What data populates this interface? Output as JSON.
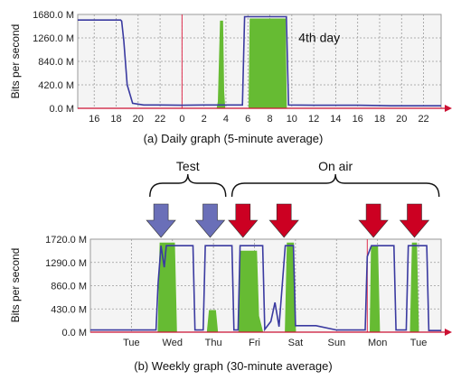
{
  "chart_data": [
    {
      "type": "line",
      "caption": "(a) Daily graph (5-minute average)",
      "ylabel": "Bits per second",
      "ylim": [
        0,
        1680
      ],
      "yticks": [
        "0.0 M",
        "420.0 M",
        "840.0 M",
        "1260.0 M",
        "1680.0 M"
      ],
      "ytick_values": [
        0,
        420,
        840,
        1260,
        1680
      ],
      "xticks": [
        "16",
        "18",
        "20",
        "22",
        "0",
        "2",
        "4",
        "6",
        "8",
        "10",
        "12",
        "14",
        "16",
        "18",
        "20",
        "22"
      ],
      "xtick_hours": [
        16,
        18,
        20,
        22,
        24,
        26,
        28,
        30,
        32,
        34,
        36,
        38,
        40,
        42,
        44,
        46
      ],
      "xlim_hours": [
        14.5,
        47.6
      ],
      "grid": true,
      "annotation": {
        "text": "4th day",
        "x_hour": 36.5,
        "y": 1190
      },
      "marker_hour": 24,
      "series": [
        {
          "color": "#3a3aa0",
          "points": [
            [
              14.5,
              1580
            ],
            [
              18.4,
              1580
            ],
            [
              18.5,
              1560
            ],
            [
              18.7,
              1200
            ],
            [
              19.0,
              420
            ],
            [
              19.5,
              90
            ],
            [
              20.5,
              60
            ],
            [
              22,
              60
            ],
            [
              24,
              55
            ],
            [
              26,
              60
            ],
            [
              28,
              60
            ],
            [
              29.5,
              60
            ],
            [
              29.7,
              1640
            ],
            [
              33.5,
              1640
            ],
            [
              33.7,
              60
            ],
            [
              36,
              55
            ],
            [
              40,
              55
            ],
            [
              42,
              50
            ],
            [
              43,
              45
            ],
            [
              47.6,
              45
            ]
          ]
        },
        {
          "color": "#66bb33",
          "fill": true,
          "points": [
            [
              14.5,
              0
            ],
            [
              27.2,
              0
            ],
            [
              27.3,
              120
            ],
            [
              27.5,
              1560
            ],
            [
              27.7,
              1560
            ],
            [
              27.8,
              300
            ],
            [
              27.9,
              0
            ],
            [
              30.1,
              0
            ],
            [
              30.2,
              1600
            ],
            [
              33.4,
              1600
            ],
            [
              33.5,
              0
            ],
            [
              47.6,
              0
            ]
          ]
        }
      ]
    },
    {
      "type": "line",
      "caption": "(b) Weekly graph (30-minute average)",
      "ylabel": "Bits per second",
      "ylim": [
        0,
        1720
      ],
      "yticks": [
        "0.0 M",
        "430.0 M",
        "860.0 M",
        "1290.0 M",
        "1720.0 M"
      ],
      "ytick_values": [
        0,
        430,
        860,
        1290,
        1720
      ],
      "xticks": [
        "Tue",
        "Wed",
        "Thu",
        "Fri",
        "Sat",
        "Sun",
        "Mon",
        "Tue"
      ],
      "xtick_days": [
        1,
        2,
        3,
        4,
        5,
        6,
        7,
        8
      ],
      "xlim_days": [
        0,
        8.55
      ],
      "grid": true,
      "marker_day": 6.75,
      "groups": [
        {
          "label": "Test",
          "from_day": 1.45,
          "to_day": 3.3
        },
        {
          "label": "On air",
          "from_day": 3.45,
          "to_day": 8.5
        }
      ],
      "arrows": [
        {
          "day": 1.72,
          "color": "#6a6fb8"
        },
        {
          "day": 2.92,
          "color": "#6a6fb8"
        },
        {
          "day": 3.72,
          "color": "#cc0022"
        },
        {
          "day": 4.72,
          "color": "#cc0022"
        },
        {
          "day": 6.9,
          "color": "#cc0022"
        },
        {
          "day": 7.9,
          "color": "#cc0022"
        }
      ],
      "series": [
        {
          "color": "#3a3aa0",
          "points": [
            [
              0,
              40
            ],
            [
              1.6,
              40
            ],
            [
              1.65,
              900
            ],
            [
              1.72,
              1600
            ],
            [
              1.8,
              1200
            ],
            [
              1.85,
              1600
            ],
            [
              2.5,
              1600
            ],
            [
              2.55,
              40
            ],
            [
              2.75,
              40
            ],
            [
              2.8,
              1600
            ],
            [
              3.45,
              1600
            ],
            [
              3.5,
              40
            ],
            [
              3.6,
              40
            ],
            [
              3.65,
              1600
            ],
            [
              4.2,
              1600
            ],
            [
              4.25,
              50
            ],
            [
              4.4,
              200
            ],
            [
              4.5,
              550
            ],
            [
              4.6,
              100
            ],
            [
              4.75,
              1600
            ],
            [
              4.95,
              1600
            ],
            [
              5.0,
              120
            ],
            [
              5.5,
              120
            ],
            [
              6.0,
              40
            ],
            [
              6.7,
              40
            ],
            [
              6.75,
              1400
            ],
            [
              6.85,
              1600
            ],
            [
              7.4,
              1600
            ],
            [
              7.45,
              40
            ],
            [
              7.7,
              40
            ],
            [
              7.75,
              1600
            ],
            [
              8.2,
              1600
            ],
            [
              8.25,
              30
            ],
            [
              8.55,
              30
            ]
          ]
        },
        {
          "color": "#66bb33",
          "fill": true,
          "points": [
            [
              0,
              0
            ],
            [
              1.65,
              0
            ],
            [
              1.7,
              1650
            ],
            [
              2.05,
              1650
            ],
            [
              2.1,
              0
            ],
            [
              2.85,
              0
            ],
            [
              2.9,
              400
            ],
            [
              3.05,
              400
            ],
            [
              3.1,
              0
            ],
            [
              3.62,
              0
            ],
            [
              3.65,
              1500
            ],
            [
              4.05,
              1500
            ],
            [
              4.1,
              300
            ],
            [
              4.2,
              0
            ],
            [
              4.75,
              0
            ],
            [
              4.8,
              1650
            ],
            [
              4.95,
              1650
            ],
            [
              5.0,
              0
            ],
            [
              6.82,
              0
            ],
            [
              6.85,
              1600
            ],
            [
              7.0,
              1600
            ],
            [
              7.05,
              0
            ],
            [
              7.8,
              0
            ],
            [
              7.85,
              1650
            ],
            [
              7.95,
              1650
            ],
            [
              8.0,
              0
            ],
            [
              8.55,
              0
            ]
          ]
        }
      ]
    }
  ]
}
